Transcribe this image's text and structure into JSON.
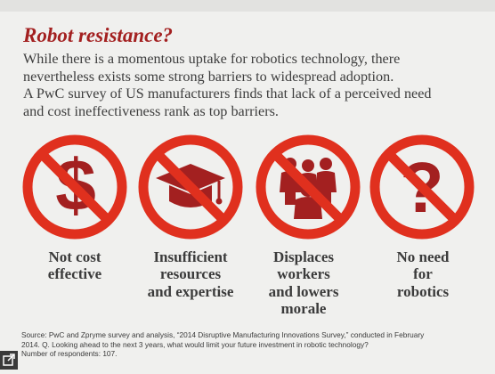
{
  "title": "Robot resistance?",
  "intro": {
    "line1": "While there is a momentous uptake for robotics technology, there",
    "line2": "nevertheless exists some strong barriers to widespread adoption.",
    "line3": "A PwC survey of US manufacturers finds that lack of a perceived need",
    "line4": "and cost ineffectiveness rank as top barriers."
  },
  "colors": {
    "accent": "#a32020",
    "icon_fill": "#a32020",
    "ring": "#e0301e",
    "text": "#3b3b3b"
  },
  "barriers": [
    {
      "icon": "dollar-sign-icon",
      "glyph": "$",
      "lines": [
        "Not cost",
        "effective"
      ]
    },
    {
      "icon": "graduation-cap-icon",
      "lines": [
        "Insufficient",
        "resources",
        "and expertise"
      ]
    },
    {
      "icon": "people-group-icon",
      "lines": [
        "Displaces",
        "workers",
        "and lowers",
        "morale"
      ]
    },
    {
      "icon": "question-mark-icon",
      "glyph": "?",
      "lines": [
        "No need",
        "for",
        "robotics"
      ]
    }
  ],
  "source": {
    "line1": "Source: PwC and Zpryme survey and analysis, “2014 Disruptive Manufacturing Innovations Survey,” conducted in February",
    "line2": "2014. Q. Looking ahead to the next 3 years, what would limit your future investment in robotic technology?",
    "line3": "Number of respondents: 107."
  },
  "expand_icon": "expand-icon"
}
